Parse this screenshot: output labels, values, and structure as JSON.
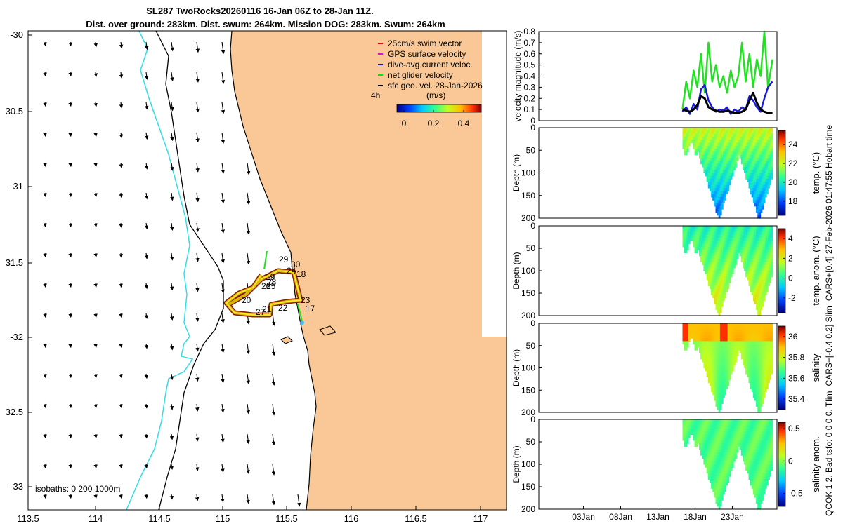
{
  "header": {
    "title_line1": "SL287 TwoRocks20260116 16-Jan 06Z to 28-Jan 11Z.",
    "title_line2": "Dist. over ground: 283km. Dist. swum: 264km. Mission DOG: 283km. Swum: 264km"
  },
  "side_note": "QCOK 1  2. Bad tsfo: 0  0  0  0. Tlim=CARS+[-0.4 0.2] Slim=CARS+[0.4] 27-Feb-2026 01:47:55 Hobart time",
  "colors": {
    "land": "#f9c896",
    "coast": "#000000",
    "isobath200": "#000000",
    "isobath1000": "#33dde8",
    "track_outer": "#8b1a00",
    "track_mid": "#d9b800",
    "track_core": "#ffee44",
    "net_velocity": "#22e022"
  },
  "map": {
    "legend": [
      {
        "label": "25cm/s swim vector",
        "color": "#e01010"
      },
      {
        "label": "GPS surface velocity",
        "color": "#e010e0"
      },
      {
        "label": "dive-avg current veloc.",
        "color": "#1010e0"
      },
      {
        "label": "net glider velocity",
        "color": "#10e010"
      },
      {
        "label": "sfc geo. vel. 28-Jan-2026",
        "color": "#000000"
      }
    ],
    "duration_label": "4h",
    "colorbar_label": "(m/s)",
    "colorbar_ticks": [
      "0",
      "0.2",
      "0.4"
    ],
    "lon_ticks": [
      "113.5",
      "114",
      "114.5",
      "115",
      "115.5",
      "116",
      "116.5",
      "117"
    ],
    "lat_ticks": [
      "-30",
      "30.5",
      "-31",
      "31.5",
      "-32",
      "32.5",
      "-33"
    ],
    "isobaths_label": "isobaths: 0  200  1000m",
    "day_labels": [
      "29",
      "30",
      "24",
      "18",
      "19",
      "28",
      "25",
      "26",
      "20",
      "27",
      "21",
      "22",
      "23",
      "17"
    ]
  },
  "chart_data": [
    {
      "type": "line",
      "ylabel": "velocity magnitude (m/s)",
      "ylim": [
        0,
        0.8
      ],
      "yticks": [
        "0",
        "0.1",
        "0.2",
        "0.3",
        "0.4",
        "0.5",
        "0.6",
        "0.7",
        "0.8"
      ],
      "xlim": [
        "2025-12-28",
        "2026-01-29"
      ],
      "series": [
        {
          "key": "net_glider",
          "color": "#22e022",
          "x": [
            16.3,
            16.8,
            17.3,
            17.8,
            18.3,
            18.8,
            19.3,
            19.8,
            20.3,
            20.8,
            21.3,
            21.8,
            22.3,
            22.8,
            23.3,
            23.8,
            24.3,
            24.8,
            25.3,
            25.8,
            26.3,
            26.8,
            27.3,
            27.8,
            28.4
          ],
          "y": [
            0.1,
            0.35,
            0.2,
            0.45,
            0.3,
            0.6,
            0.25,
            0.7,
            0.35,
            0.5,
            0.3,
            0.4,
            0.25,
            0.45,
            0.3,
            0.4,
            0.7,
            0.35,
            0.6,
            0.3,
            0.55,
            0.4,
            0.8,
            0.3,
            0.55
          ]
        },
        {
          "key": "dive_avg",
          "color": "#1a1adc",
          "x": [
            16.3,
            16.8,
            17.3,
            17.8,
            18.3,
            18.8,
            19.3,
            19.8,
            20.3,
            20.8,
            21.3,
            21.8,
            22.3,
            22.8,
            23.3,
            23.8,
            24.3,
            24.8,
            25.3,
            25.8,
            26.3,
            26.8,
            27.3,
            27.8,
            28.4
          ],
          "y": [
            0.08,
            0.12,
            0.06,
            0.15,
            0.1,
            0.28,
            0.32,
            0.18,
            0.12,
            0.08,
            0.1,
            0.09,
            0.12,
            0.06,
            0.1,
            0.08,
            0.12,
            0.1,
            0.22,
            0.18,
            0.12,
            0.08,
            0.2,
            0.3,
            0.35
          ]
        },
        {
          "key": "sfc_geo",
          "color": "#000000",
          "x": [
            16.3,
            16.8,
            17.3,
            17.8,
            18.3,
            18.8,
            19.3,
            19.8,
            20.3,
            20.8,
            21.3,
            21.8,
            22.3,
            22.8,
            23.3,
            23.8,
            24.3,
            24.8,
            25.3,
            25.8,
            26.3,
            26.8,
            27.3,
            27.8,
            28.4
          ],
          "y": [
            0.1,
            0.09,
            0.08,
            0.1,
            0.14,
            0.22,
            0.2,
            0.12,
            0.1,
            0.09,
            0.08,
            0.08,
            0.09,
            0.08,
            0.07,
            0.07,
            0.08,
            0.1,
            0.18,
            0.25,
            0.16,
            0.1,
            0.08,
            0.07,
            0.07
          ]
        }
      ]
    },
    {
      "type": "heatmap",
      "ylabel": "Depth (m)",
      "ylim": [
        0,
        200
      ],
      "yticks": [
        "0",
        "50",
        "100",
        "150",
        "200"
      ],
      "colorbar_label": "temp. (°C)",
      "colorbar_ticks": [
        "18",
        "20",
        "22",
        "24"
      ],
      "clim": [
        16.5,
        25.5
      ]
    },
    {
      "type": "heatmap",
      "ylabel": "Depth (m)",
      "ylim": [
        0,
        200
      ],
      "yticks": [
        "0",
        "50",
        "100",
        "150",
        "200"
      ],
      "colorbar_label": "temp. anom. (°C)",
      "colorbar_ticks": [
        "-2",
        "0",
        "2",
        "4"
      ],
      "clim": [
        -3.5,
        5
      ]
    },
    {
      "type": "heatmap",
      "ylabel": "Depth (m)",
      "ylim": [
        0,
        200
      ],
      "yticks": [
        "0",
        "50",
        "100",
        "150",
        "200"
      ],
      "colorbar_label": "salinity",
      "colorbar_ticks": [
        "35.4",
        "35.6",
        "35.8",
        "36"
      ],
      "clim": [
        35.3,
        36.1
      ]
    },
    {
      "type": "heatmap",
      "ylabel": "Depth (m)",
      "ylim": [
        0,
        200
      ],
      "yticks": [
        "0",
        "50",
        "100",
        "150",
        "200"
      ],
      "colorbar_label": "salinity anom.",
      "colorbar_ticks": [
        "-0.5",
        "0",
        "0.5"
      ],
      "clim": [
        -0.7,
        0.6
      ],
      "xticks": [
        "03Jan",
        "08Jan",
        "13Jan",
        "18Jan",
        "23Jan"
      ]
    }
  ]
}
